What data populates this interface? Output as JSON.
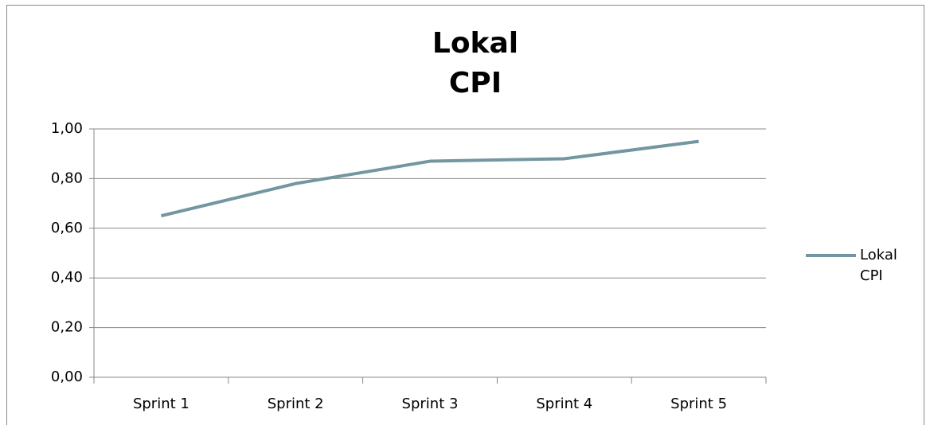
{
  "chart_data": {
    "type": "line",
    "title": "Lokal CPI",
    "categories": [
      "Sprint 1",
      "Sprint 2",
      "Sprint 3",
      "Sprint 4",
      "Sprint 5"
    ],
    "series": [
      {
        "name": "Lokal CPI",
        "color": "#7396a0",
        "values": [
          0.65,
          0.78,
          0.87,
          0.88,
          0.95
        ]
      }
    ],
    "ylim": [
      0,
      1
    ],
    "yticks": [
      {
        "value": 0,
        "label": "0,00"
      },
      {
        "value": 0.2,
        "label": "0,20"
      },
      {
        "value": 0.4,
        "label": "0,40"
      },
      {
        "value": 0.6,
        "label": "0,60"
      },
      {
        "value": 0.8,
        "label": "0,80"
      },
      {
        "value": 1,
        "label": "1,00"
      }
    ],
    "grid": true,
    "legend": "right"
  }
}
